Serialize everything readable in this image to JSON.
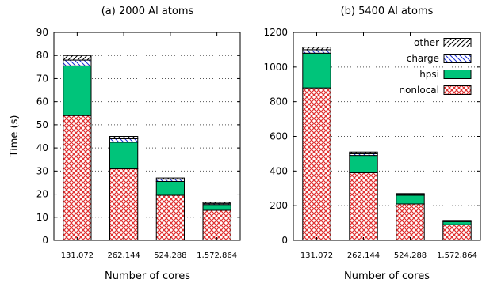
{
  "ylabel": "Time (s)",
  "chart_data": [
    {
      "type": "bar",
      "stacked": true,
      "title": "(a) 2000 Al atoms",
      "xlabel": "Number of cores",
      "categories": [
        "131,072",
        "262,144",
        "524,288",
        "1,572,864"
      ],
      "ylim": [
        0,
        90
      ],
      "yticks": [
        0,
        10,
        20,
        30,
        40,
        50,
        60,
        70,
        80,
        90
      ],
      "grid": "horizontal dotted",
      "series": [
        {
          "name": "nonlocal",
          "values": [
            54,
            31,
            19.5,
            13
          ],
          "color": "#e03030",
          "pattern": "crosshatch"
        },
        {
          "name": "hpsi",
          "values": [
            21.5,
            11.5,
            6,
            2.5
          ],
          "color": "#00c47a",
          "pattern": "solid"
        },
        {
          "name": "charge",
          "values": [
            2.5,
            1.5,
            1,
            0.5
          ],
          "color": "#1a2fd6",
          "pattern": "backslash"
        },
        {
          "name": "other",
          "values": [
            2,
            1,
            0.5,
            0.5
          ],
          "color": "#000000",
          "pattern": "slash"
        }
      ]
    },
    {
      "type": "bar",
      "stacked": true,
      "title": "(b) 5400 Al atoms",
      "xlabel": "Number of cores",
      "categories": [
        "131,072",
        "262,144",
        "524,288",
        "1,572,864"
      ],
      "ylim": [
        0,
        1200
      ],
      "yticks": [
        0,
        200,
        400,
        600,
        800,
        1000,
        1200
      ],
      "grid": "horizontal dotted",
      "legend_position": "top-right",
      "series": [
        {
          "name": "nonlocal",
          "values": [
            880,
            390,
            210,
            90
          ],
          "color": "#e03030",
          "pattern": "crosshatch"
        },
        {
          "name": "hpsi",
          "values": [
            200,
            100,
            50,
            18
          ],
          "color": "#00c47a",
          "pattern": "solid"
        },
        {
          "name": "charge",
          "values": [
            20,
            10,
            5,
            3
          ],
          "color": "#1a2fd6",
          "pattern": "backslash"
        },
        {
          "name": "other",
          "values": [
            15,
            10,
            5,
            4
          ],
          "color": "#000000",
          "pattern": "slash"
        }
      ]
    }
  ]
}
